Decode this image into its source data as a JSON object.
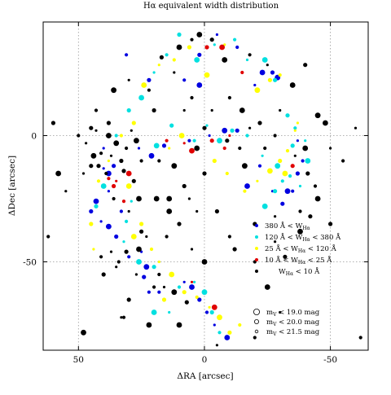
{
  "chart_data": {
    "type": "scatter",
    "title": "Hα equivalent width distribution",
    "xlabel": "ΔRA [arcsec]",
    "ylabel": "ΔDec [arcsec]",
    "xlim": [
      64,
      -65
    ],
    "ylim": [
      -85,
      45
    ],
    "x_inverted": true,
    "xticks": [
      50,
      0,
      -50
    ],
    "yticks": [
      0,
      -50
    ],
    "xtick_labels": [
      "50",
      "0",
      "-50"
    ],
    "ytick_labels": [
      "0",
      "-50"
    ],
    "grid": "dotted at 0 and ±50",
    "legend_position": "bottom-right",
    "series": [
      {
        "name": "380 Å < W_Hα",
        "label_main": "380 Å < W",
        "label_sub": "Hα",
        "label_tail": "",
        "color": "#0000e0",
        "points": [
          [
            40,
            -13
          ],
          [
            38,
            -15
          ],
          [
            36,
            -12
          ],
          [
            33,
            -30
          ],
          [
            41,
            -34
          ],
          [
            38,
            -36
          ],
          [
            35,
            -40
          ],
          [
            30,
            -48
          ],
          [
            25,
            -46
          ],
          [
            23,
            -52
          ],
          [
            24,
            -56
          ],
          [
            22,
            -62
          ],
          [
            8,
            -58
          ],
          [
            5,
            -60
          ],
          [
            2,
            -65
          ],
          [
            -1,
            -70
          ],
          [
            26,
            -5
          ],
          [
            21,
            -8
          ],
          [
            16,
            -4
          ],
          [
            6,
            -2
          ],
          [
            -2,
            0
          ],
          [
            -8,
            2
          ],
          [
            -13,
            2
          ],
          [
            -22,
            -12
          ],
          [
            -27,
            -22
          ],
          [
            -33,
            -22
          ],
          [
            -37,
            -15
          ],
          [
            -39,
            -10
          ],
          [
            -37,
            -2
          ],
          [
            -23,
            25
          ],
          [
            -27,
            25
          ],
          [
            -13,
            35
          ],
          [
            -5,
            40
          ],
          [
            2,
            20
          ],
          [
            2,
            32
          ],
          [
            8,
            22
          ],
          [
            40,
            -5
          ],
          [
            43,
            -26
          ],
          [
            45,
            -30
          ],
          [
            18,
            -62
          ],
          [
            -4,
            -75
          ],
          [
            -9,
            -80
          ],
          [
            22,
            22
          ],
          [
            31,
            32
          ],
          [
            -20,
            20
          ],
          [
            -29,
            23
          ],
          [
            -31,
            -27
          ],
          [
            -35,
            -22
          ],
          [
            38,
            -22
          ],
          [
            -17,
            -20
          ]
        ]
      },
      {
        "name": "120 Å < W_Hα < 380 Å",
        "label_main": "120 Å < W",
        "label_sub": "Hα",
        "label_tail": " < 380 Å",
        "color": "#00e0e0",
        "points": [
          [
            40,
            -20
          ],
          [
            43,
            -28
          ],
          [
            31,
            -34
          ],
          [
            29,
            -26
          ],
          [
            19,
            -4
          ],
          [
            13,
            4
          ],
          [
            4,
            -2
          ],
          [
            -1,
            4
          ],
          [
            -6,
            -2
          ],
          [
            -11,
            2
          ],
          [
            -17,
            0
          ],
          [
            -23,
            -8
          ],
          [
            -29,
            -12
          ],
          [
            -35,
            -4
          ],
          [
            -34,
            -16
          ],
          [
            -38,
            -20
          ],
          [
            -24,
            -28
          ],
          [
            -28,
            -22
          ],
          [
            -31,
            -18
          ],
          [
            -17,
            30
          ],
          [
            -24,
            30
          ],
          [
            -28,
            22
          ],
          [
            -12,
            38
          ],
          [
            -4,
            36
          ],
          [
            3,
            30
          ],
          [
            10,
            40
          ],
          [
            15,
            32
          ],
          [
            20,
            25
          ],
          [
            25,
            15
          ],
          [
            30,
            10
          ],
          [
            35,
            0
          ],
          [
            32,
            -42
          ],
          [
            26,
            -50
          ],
          [
            20,
            -52
          ],
          [
            10,
            -60
          ],
          [
            4,
            -58
          ],
          [
            0,
            -62
          ],
          [
            -3,
            -70
          ],
          [
            -6,
            -78
          ],
          [
            14,
            -70
          ],
          [
            20,
            -70
          ],
          [
            -33,
            8
          ],
          [
            -36,
            3
          ],
          [
            -40,
            -2
          ],
          [
            -41,
            -10
          ]
        ]
      },
      {
        "name": "25 Å < W_Hα < 120 Å",
        "label_main": "25 Å < W",
        "label_sub": "Hα",
        "label_tail": " < 120 Å",
        "color": "#ffff00",
        "points": [
          [
            45,
            -35
          ],
          [
            42,
            -18
          ],
          [
            38,
            -10
          ],
          [
            30,
            -20
          ],
          [
            25,
            -35
          ],
          [
            21,
            -45
          ],
          [
            18,
            -50
          ],
          [
            13,
            -55
          ],
          [
            8,
            -62
          ],
          [
            3,
            -64
          ],
          [
            -2,
            -68
          ],
          [
            -6,
            -72
          ],
          [
            -10,
            -78
          ],
          [
            -16,
            -22
          ],
          [
            -21,
            -18
          ],
          [
            -26,
            -14
          ],
          [
            -30,
            -10
          ],
          [
            -33,
            -6
          ],
          [
            -36,
            2
          ],
          [
            -21,
            18
          ],
          [
            -26,
            22
          ],
          [
            -30,
            24
          ],
          [
            -8,
            36
          ],
          [
            -1,
            24
          ],
          [
            6,
            35
          ],
          [
            12,
            30
          ],
          [
            18,
            28
          ],
          [
            24,
            20
          ],
          [
            28,
            5
          ],
          [
            33,
            0
          ],
          [
            14,
            -5
          ],
          [
            9,
            0
          ],
          [
            -4,
            -10
          ],
          [
            -9,
            -15
          ],
          [
            44,
            -45
          ],
          [
            28,
            -40
          ],
          [
            16,
            -65
          ],
          [
            -14,
            -75
          ],
          [
            -37,
            5
          ],
          [
            -32,
            -15
          ]
        ]
      },
      {
        "name": "10 Å < W_Hα < 25 Å",
        "label_main": "10 Å < W",
        "label_sub": "Hα",
        "label_tail": " < 25 Å",
        "color": "#e00000",
        "points": [
          [
            38,
            -17
          ],
          [
            35,
            -18
          ],
          [
            30,
            -15
          ],
          [
            36,
            -20
          ],
          [
            15,
            -2
          ],
          [
            8,
            -3
          ],
          [
            5,
            -6
          ],
          [
            -3,
            -2
          ],
          [
            -8,
            -5
          ],
          [
            -10,
            0
          ],
          [
            -7,
            35
          ],
          [
            -1,
            35
          ],
          [
            -15,
            25
          ],
          [
            5,
            -58
          ],
          [
            -4,
            -68
          ],
          [
            -35,
            -12
          ],
          [
            32,
            -26
          ]
        ]
      },
      {
        "name": "W_Hα < 10 Å",
        "label_main": "W",
        "label_sub": "Hα",
        "label_tail": " < 10 Å",
        "color": "#000000",
        "points": [
          [
            47,
            -3
          ],
          [
            44,
            -8
          ],
          [
            42,
            -12
          ],
          [
            39,
            -15
          ],
          [
            37,
            -8
          ],
          [
            35,
            -3
          ],
          [
            33,
            -10
          ],
          [
            31,
            -5
          ],
          [
            29,
            2
          ],
          [
            27,
            -2
          ],
          [
            45,
            -12
          ],
          [
            41,
            -7
          ],
          [
            43,
            2
          ],
          [
            38,
            0
          ],
          [
            32,
            -14
          ],
          [
            36,
            -25
          ],
          [
            30,
            -30
          ],
          [
            26,
            -25
          ],
          [
            25,
            -38
          ],
          [
            18,
            -55
          ],
          [
            16,
            -60
          ],
          [
            12,
            -62
          ],
          [
            7,
            -66
          ],
          [
            20,
            -60
          ],
          [
            23,
            -40
          ],
          [
            26,
            -45
          ],
          [
            45,
            3
          ],
          [
            50,
            0
          ],
          [
            48,
            -15
          ],
          [
            14,
            -25
          ],
          [
            10,
            -35
          ],
          [
            15,
            -40
          ],
          [
            5,
            -45
          ],
          [
            0,
            -50
          ],
          [
            -5,
            -30
          ],
          [
            -10,
            -40
          ],
          [
            3,
            -30
          ],
          [
            19,
            -25
          ],
          [
            -9,
            -2
          ],
          [
            -14,
            -5
          ],
          [
            -18,
            3
          ],
          [
            3,
            -5
          ],
          [
            0,
            3
          ],
          [
            5,
            15
          ],
          [
            8,
            10
          ],
          [
            2,
            40
          ],
          [
            -3,
            38
          ],
          [
            -18,
            32
          ],
          [
            -25,
            28
          ],
          [
            10,
            35
          ],
          [
            17,
            31
          ],
          [
            22,
            18
          ],
          [
            30,
            22
          ],
          [
            36,
            18
          ],
          [
            38,
            5
          ],
          [
            43,
            10
          ],
          [
            -36,
            -8
          ],
          [
            -40,
            -5
          ],
          [
            -41,
            -15
          ],
          [
            -44,
            -20
          ],
          [
            -50,
            -5
          ],
          [
            -45,
            -25
          ],
          [
            -50,
            -35
          ],
          [
            -55,
            -10
          ],
          [
            -60,
            3
          ],
          [
            -48,
            5
          ],
          [
            -22,
            5
          ],
          [
            -28,
            0
          ],
          [
            -30,
            10
          ],
          [
            -35,
            20
          ],
          [
            -40,
            28
          ],
          [
            -62,
            -80
          ],
          [
            -30,
            -70
          ],
          [
            -25,
            -60
          ],
          [
            -32,
            -48
          ],
          [
            -20,
            -80
          ],
          [
            -5,
            -83
          ],
          [
            10,
            -75
          ],
          [
            30,
            -65
          ],
          [
            32,
            -72
          ],
          [
            33,
            -72
          ],
          [
            48,
            -78
          ],
          [
            40,
            -55
          ],
          [
            62,
            -40
          ],
          [
            55,
            -22
          ],
          [
            58,
            -15
          ],
          [
            60,
            5
          ],
          [
            34,
            -50
          ],
          [
            37,
            -46
          ],
          [
            22,
            -75
          ],
          [
            -12,
            -45
          ],
          [
            -20,
            -50
          ],
          [
            -28,
            -42
          ],
          [
            -38,
            -38
          ],
          [
            -42,
            -32
          ],
          [
            -10,
            15
          ],
          [
            -3,
            10
          ],
          [
            12,
            -12
          ],
          [
            8,
            -20
          ],
          [
            25,
            -10
          ],
          [
            35,
            -52
          ],
          [
            -15,
            10
          ],
          [
            -20,
            -35
          ],
          [
            -38,
            -30
          ],
          [
            12,
            25
          ],
          [
            -8,
            30
          ],
          [
            0,
            -15
          ],
          [
            18,
            -10
          ],
          [
            27,
            -55
          ],
          [
            14,
            -30
          ],
          [
            31,
            -46
          ],
          [
            5,
            38
          ],
          [
            -28,
            -32
          ],
          [
            -45,
            8
          ],
          [
            20,
            10
          ],
          [
            41,
            -48
          ],
          [
            6,
            -25
          ],
          [
            -16,
            -12
          ],
          [
            28,
            -18
          ],
          [
            -24,
            -5
          ]
        ]
      }
    ],
    "mag_legend": [
      {
        "label_main": "m",
        "label_sub": "V",
        "label_tail": " < 19.0 mag",
        "size": "large"
      },
      {
        "label_main": "m",
        "label_sub": "V",
        "label_tail": " < 20.0 mag",
        "size": "medium"
      },
      {
        "label_main": "m",
        "label_sub": "V",
        "label_tail": " < 21.5 mag",
        "size": "small"
      }
    ]
  }
}
